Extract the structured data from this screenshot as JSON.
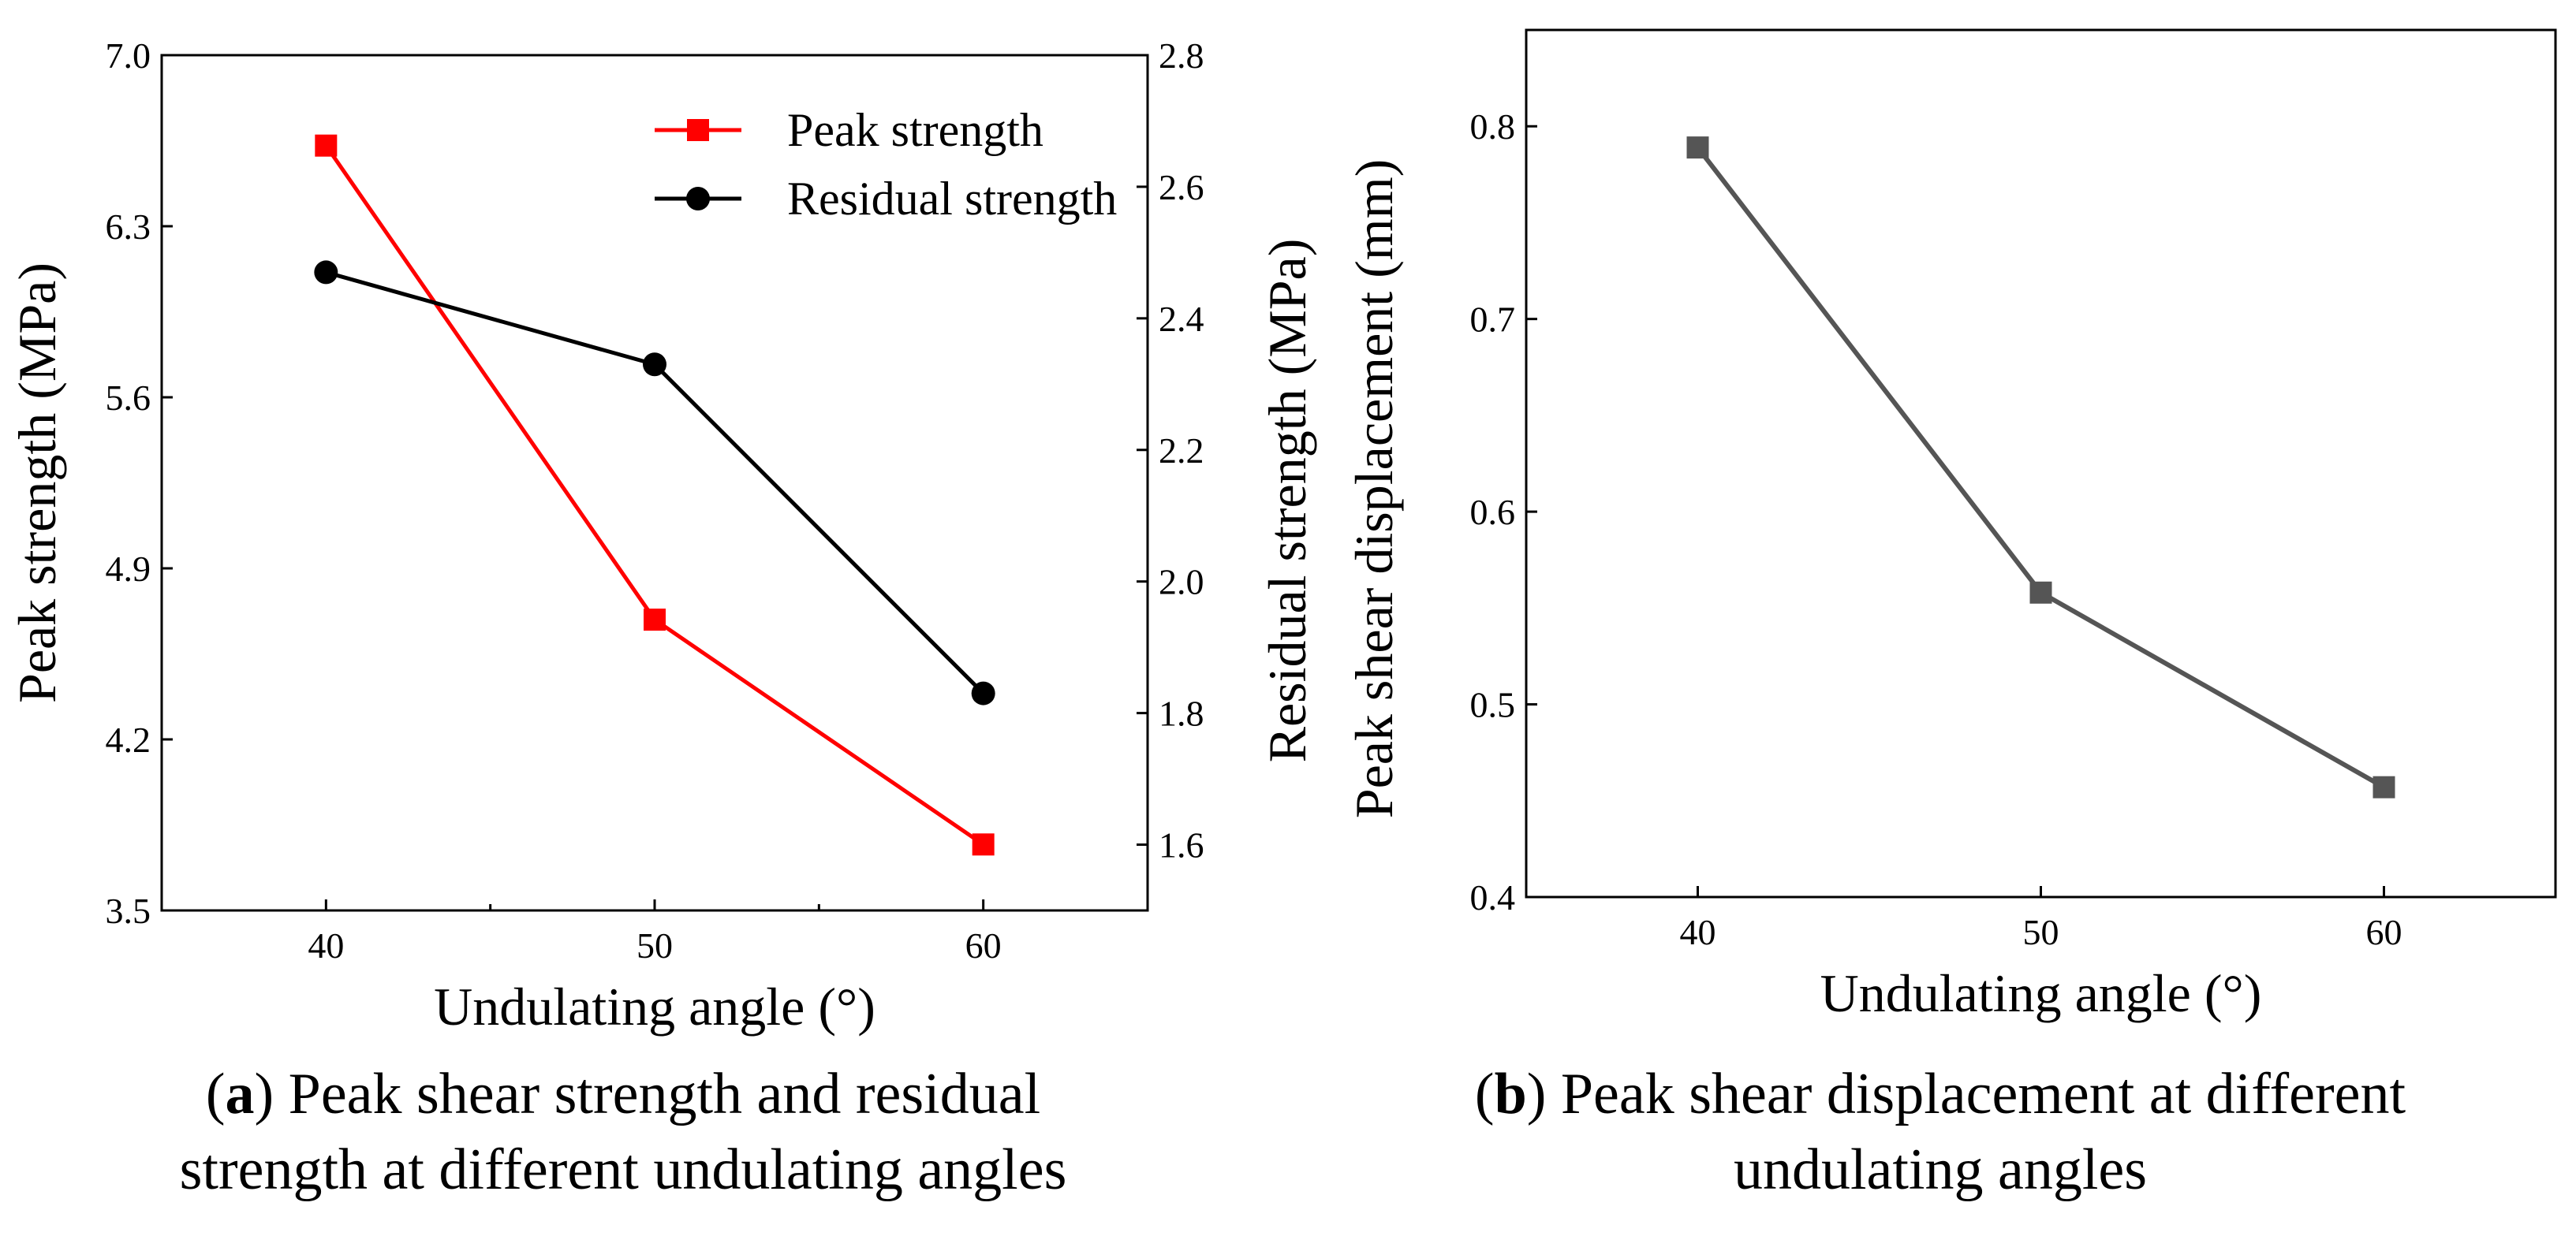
{
  "colors": {
    "peak": "#ff0000",
    "residual": "#000000",
    "displacement": "#555555"
  },
  "captions": {
    "a": {
      "letter": "a",
      "text_line1": ") Peak shear strength and residual",
      "text_line2": "strength at different undulating angles"
    },
    "b": {
      "letter": "b",
      "text_line1": ") Peak shear displacement at different",
      "text_line2": "undulating angles"
    }
  },
  "chart_data": [
    {
      "id": "a",
      "type": "line",
      "xlabel": "Undulating angle (°)",
      "x": [
        40,
        50,
        60
      ],
      "xlim": [
        35,
        65
      ],
      "xticks": [
        40,
        50,
        60
      ],
      "ylabel_left": "Peak strength (MPa)",
      "ylim_left": [
        3.5,
        7.0
      ],
      "yticks_left": [
        "3.5",
        "4.2",
        "4.9",
        "5.6",
        "6.3",
        "7.0"
      ],
      "ylabel_right": "Residual strength (MPa)",
      "ylim_right": [
        1.5,
        2.8
      ],
      "yticks_right": [
        "1.6",
        "1.8",
        "2.0",
        "2.2",
        "2.4",
        "2.6",
        "2.8"
      ],
      "series": [
        {
          "name": "Peak strength",
          "axis": "left",
          "marker": "square",
          "values": [
            6.63,
            4.69,
            3.77
          ]
        },
        {
          "name": "Residual strength",
          "axis": "right",
          "marker": "circle",
          "values": [
            2.47,
            2.33,
            1.83
          ]
        }
      ],
      "legend": "top-right"
    },
    {
      "id": "b",
      "type": "line",
      "xlabel": "Undulating angle (°)",
      "x": [
        40,
        50,
        60
      ],
      "xlim": [
        35,
        65
      ],
      "xticks": [
        40,
        50,
        60
      ],
      "ylabel": "Peak shear displacement (mm)",
      "ylim": [
        0.4,
        0.85
      ],
      "yticks": [
        "0.4",
        "0.5",
        "0.6",
        "0.7",
        "0.8"
      ],
      "series": [
        {
          "name": "Peak shear displacement",
          "marker": "square",
          "values": [
            0.789,
            0.558,
            0.457
          ]
        }
      ]
    }
  ]
}
